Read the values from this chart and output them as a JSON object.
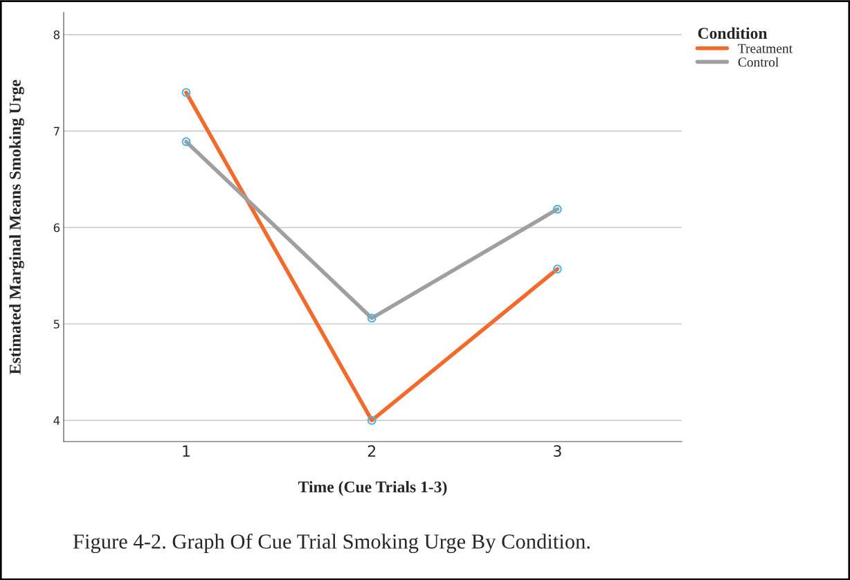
{
  "chart_data": {
    "type": "line",
    "xlabel": "Time (Cue Trials 1-3)",
    "ylabel": "Estimated Marginal Means Smoking Urge",
    "legend_title": "Condition",
    "categories": [
      "1",
      "2",
      "3"
    ],
    "series": [
      {
        "name": "Treatment",
        "color": "#f26b2d",
        "values": [
          7.4,
          4.0,
          5.57
        ]
      },
      {
        "name": "Control",
        "color": "#a09e9f",
        "values": [
          6.89,
          5.06,
          6.19
        ]
      }
    ],
    "ylim": [
      3.78,
      8.23
    ],
    "yticks": [
      4,
      5,
      6,
      7,
      8
    ],
    "grid": "y",
    "legend": "top right",
    "marker": "circle",
    "line_style": "solid",
    "annotations": [
      "Figure 4-2. Graph Of Cue Trial Smoking Urge By Condition."
    ]
  }
}
